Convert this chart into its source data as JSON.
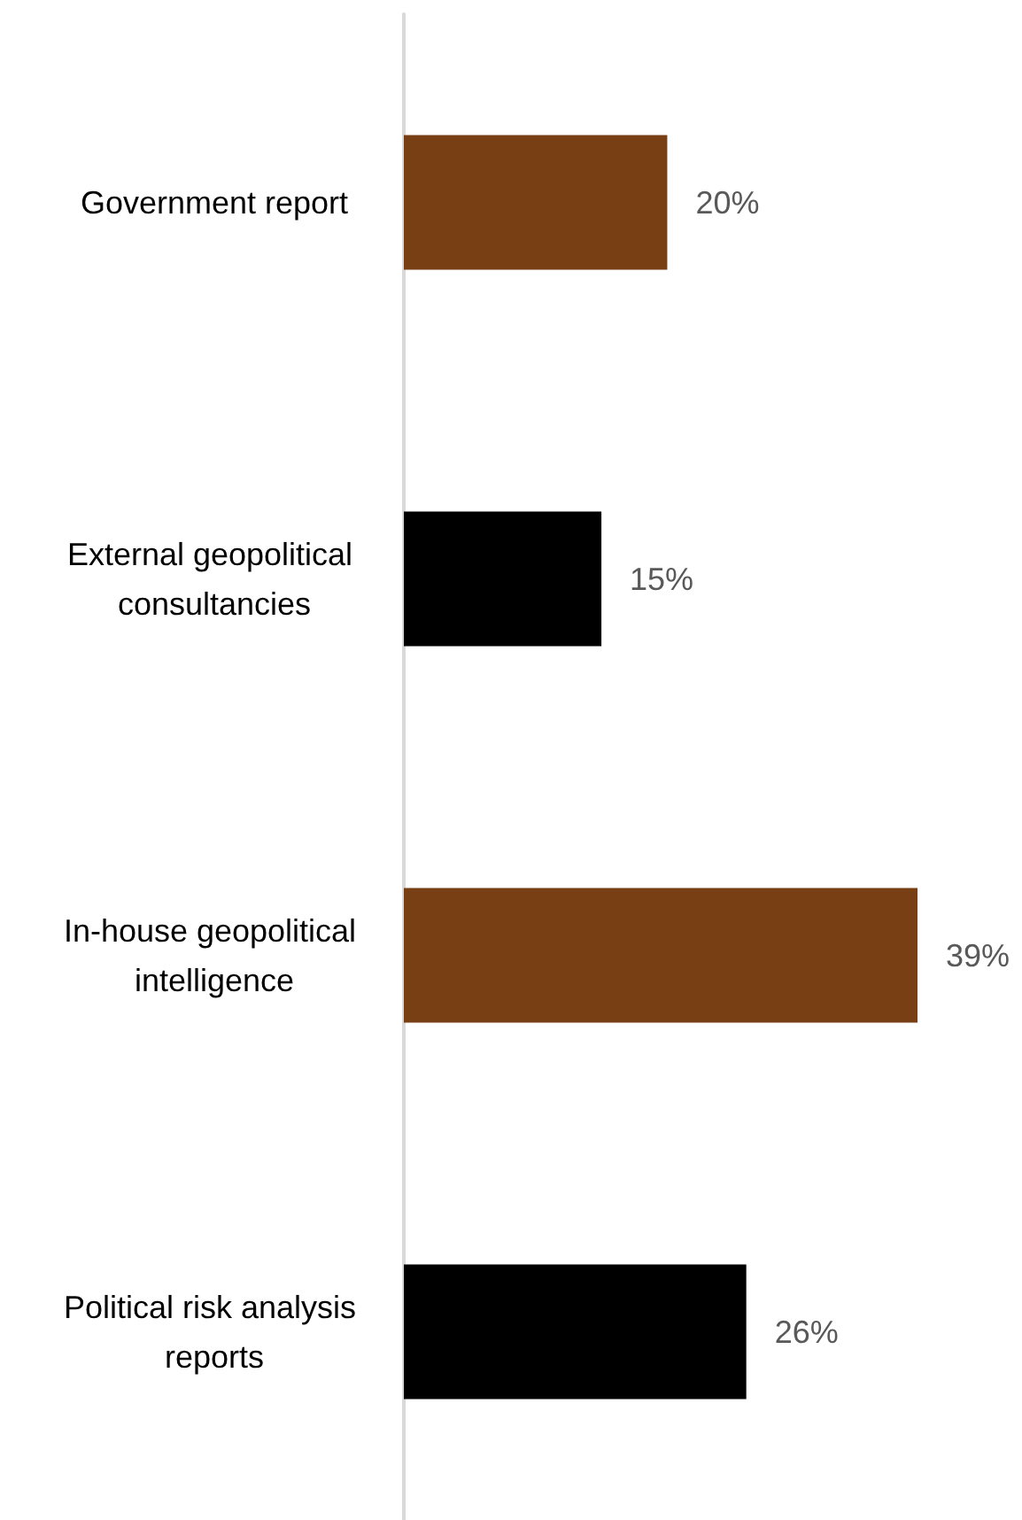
{
  "chart_data": {
    "type": "bar",
    "orientation": "horizontal",
    "categories": [
      "Government report",
      "External geopolitical consultancies",
      "In-house geopolitical intelligence",
      "Political risk analysis reports"
    ],
    "values": [
      20,
      15,
      39,
      26
    ],
    "colors": [
      "#783f14",
      "#000000",
      "#783f14",
      "#000000"
    ],
    "value_labels": [
      "20%",
      "15%",
      "39%",
      "26%"
    ],
    "grid": false
  }
}
